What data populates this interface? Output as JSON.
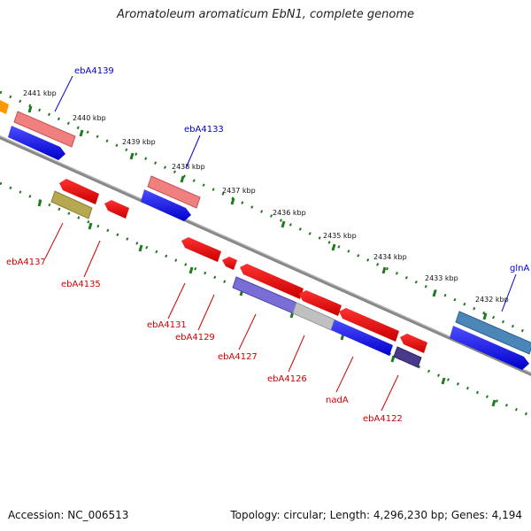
{
  "title": "Aromatoleum aromaticum EbN1, complete genome",
  "footer": {
    "accession": "Accession: NC_006513",
    "summary": "Topology: circular; Length: 4,296,230 bp; Genes: 4,194"
  },
  "colors": {
    "backbone": "#808080",
    "tick": "#1e7a1e",
    "label_forward": "#0000cc",
    "label_reverse": "#cc0000"
  },
  "kbp_labels": [
    "2441 kbp",
    "2440 kbp",
    "2439 kbp",
    "2438 kbp",
    "2437 kbp",
    "2436 kbp",
    "2435 kbp",
    "2434 kbp",
    "2433 kbp",
    "2432 kbp"
  ],
  "gene_labels": {
    "forward": [
      "ebA4139",
      "ebA4133",
      "glnA"
    ],
    "reverse": [
      "ebA4137",
      "ebA4135",
      "ebA4131",
      "ebA4129",
      "ebA4127",
      "ebA4126",
      "nadA",
      "ebA4122"
    ]
  }
}
